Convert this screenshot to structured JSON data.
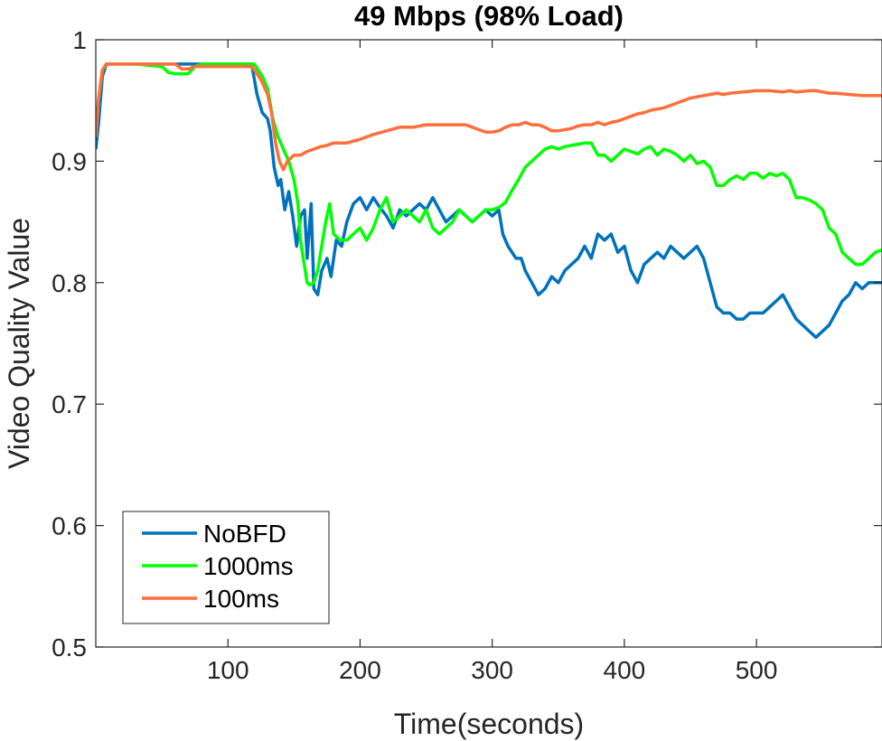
{
  "chart_data": {
    "type": "line",
    "title": "49 Mbps (98% Load)",
    "xlabel": "Time(seconds)",
    "ylabel": "Video Quality Value",
    "xlim": [
      0,
      595
    ],
    "ylim": [
      0.5,
      1
    ],
    "xticks": [
      100,
      200,
      300,
      400,
      500
    ],
    "xtick_labels": [
      "100",
      "200",
      "300",
      "400",
      "500"
    ],
    "yticks": [
      0.5,
      0.6,
      0.7,
      0.8,
      0.9,
      1
    ],
    "ytick_labels": [
      "0.5",
      "0.6",
      "0.7",
      "0.8",
      "0.9",
      "1"
    ],
    "grid": false,
    "legend_position": "bottom-left",
    "series": [
      {
        "name": "NoBFD",
        "color": "#0072BD",
        "points": [
          [
            0,
            0.91
          ],
          [
            2,
            0.93
          ],
          [
            5,
            0.97
          ],
          [
            8,
            0.98
          ],
          [
            30,
            0.98
          ],
          [
            60,
            0.98
          ],
          [
            80,
            0.98
          ],
          [
            100,
            0.98
          ],
          [
            118,
            0.98
          ],
          [
            122,
            0.955
          ],
          [
            126,
            0.94
          ],
          [
            130,
            0.935
          ],
          [
            132,
            0.925
          ],
          [
            135,
            0.895
          ],
          [
            138,
            0.88
          ],
          [
            140,
            0.885
          ],
          [
            143,
            0.86
          ],
          [
            146,
            0.875
          ],
          [
            149,
            0.855
          ],
          [
            152,
            0.83
          ],
          [
            155,
            0.855
          ],
          [
            158,
            0.86
          ],
          [
            160,
            0.82
          ],
          [
            163,
            0.865
          ],
          [
            165,
            0.795
          ],
          [
            168,
            0.79
          ],
          [
            171,
            0.81
          ],
          [
            175,
            0.82
          ],
          [
            178,
            0.805
          ],
          [
            182,
            0.835
          ],
          [
            186,
            0.83
          ],
          [
            190,
            0.85
          ],
          [
            195,
            0.865
          ],
          [
            200,
            0.87
          ],
          [
            205,
            0.86
          ],
          [
            210,
            0.87
          ],
          [
            215,
            0.862
          ],
          [
            220,
            0.855
          ],
          [
            225,
            0.845
          ],
          [
            230,
            0.86
          ],
          [
            235,
            0.855
          ],
          [
            240,
            0.86
          ],
          [
            245,
            0.865
          ],
          [
            250,
            0.86
          ],
          [
            255,
            0.87
          ],
          [
            260,
            0.86
          ],
          [
            265,
            0.85
          ],
          [
            270,
            0.855
          ],
          [
            275,
            0.86
          ],
          [
            280,
            0.855
          ],
          [
            285,
            0.85
          ],
          [
            290,
            0.855
          ],
          [
            295,
            0.86
          ],
          [
            300,
            0.855
          ],
          [
            305,
            0.86
          ],
          [
            308,
            0.84
          ],
          [
            312,
            0.83
          ],
          [
            318,
            0.82
          ],
          [
            322,
            0.82
          ],
          [
            325,
            0.81
          ],
          [
            330,
            0.8
          ],
          [
            335,
            0.79
          ],
          [
            340,
            0.795
          ],
          [
            345,
            0.805
          ],
          [
            350,
            0.8
          ],
          [
            355,
            0.81
          ],
          [
            360,
            0.815
          ],
          [
            365,
            0.82
          ],
          [
            370,
            0.83
          ],
          [
            375,
            0.82
          ],
          [
            380,
            0.84
          ],
          [
            385,
            0.835
          ],
          [
            390,
            0.84
          ],
          [
            395,
            0.825
          ],
          [
            400,
            0.83
          ],
          [
            405,
            0.81
          ],
          [
            410,
            0.8
          ],
          [
            415,
            0.815
          ],
          [
            420,
            0.82
          ],
          [
            425,
            0.825
          ],
          [
            430,
            0.82
          ],
          [
            435,
            0.83
          ],
          [
            440,
            0.825
          ],
          [
            445,
            0.82
          ],
          [
            450,
            0.825
          ],
          [
            455,
            0.83
          ],
          [
            460,
            0.82
          ],
          [
            465,
            0.8
          ],
          [
            470,
            0.78
          ],
          [
            475,
            0.775
          ],
          [
            480,
            0.775
          ],
          [
            485,
            0.77
          ],
          [
            490,
            0.77
          ],
          [
            495,
            0.775
          ],
          [
            500,
            0.775
          ],
          [
            505,
            0.775
          ],
          [
            510,
            0.78
          ],
          [
            515,
            0.785
          ],
          [
            520,
            0.79
          ],
          [
            525,
            0.78
          ],
          [
            530,
            0.77
          ],
          [
            535,
            0.765
          ],
          [
            540,
            0.76
          ],
          [
            545,
            0.755
          ],
          [
            550,
            0.76
          ],
          [
            555,
            0.765
          ],
          [
            560,
            0.775
          ],
          [
            565,
            0.785
          ],
          [
            570,
            0.79
          ],
          [
            575,
            0.8
          ],
          [
            580,
            0.795
          ],
          [
            585,
            0.8
          ],
          [
            590,
            0.8
          ],
          [
            595,
            0.8
          ]
        ]
      },
      {
        "name": "1000ms",
        "color": "#00FF00",
        "points": [
          [
            0,
            0.92
          ],
          [
            2,
            0.95
          ],
          [
            5,
            0.975
          ],
          [
            8,
            0.98
          ],
          [
            30,
            0.98
          ],
          [
            50,
            0.978
          ],
          [
            55,
            0.973
          ],
          [
            60,
            0.972
          ],
          [
            70,
            0.972
          ],
          [
            75,
            0.978
          ],
          [
            80,
            0.98
          ],
          [
            100,
            0.98
          ],
          [
            120,
            0.98
          ],
          [
            126,
            0.97
          ],
          [
            130,
            0.96
          ],
          [
            134,
            0.935
          ],
          [
            138,
            0.92
          ],
          [
            142,
            0.91
          ],
          [
            146,
            0.9
          ],
          [
            150,
            0.885
          ],
          [
            153,
            0.865
          ],
          [
            155,
            0.835
          ],
          [
            157,
            0.82
          ],
          [
            160,
            0.8
          ],
          [
            162,
            0.798
          ],
          [
            165,
            0.8
          ],
          [
            168,
            0.81
          ],
          [
            171,
            0.83
          ],
          [
            174,
            0.85
          ],
          [
            177,
            0.865
          ],
          [
            180,
            0.84
          ],
          [
            185,
            0.835
          ],
          [
            190,
            0.835
          ],
          [
            195,
            0.84
          ],
          [
            200,
            0.845
          ],
          [
            205,
            0.835
          ],
          [
            210,
            0.845
          ],
          [
            215,
            0.86
          ],
          [
            220,
            0.87
          ],
          [
            225,
            0.85
          ],
          [
            230,
            0.855
          ],
          [
            235,
            0.86
          ],
          [
            240,
            0.855
          ],
          [
            245,
            0.85
          ],
          [
            250,
            0.86
          ],
          [
            255,
            0.845
          ],
          [
            260,
            0.84
          ],
          [
            265,
            0.845
          ],
          [
            270,
            0.85
          ],
          [
            275,
            0.86
          ],
          [
            280,
            0.855
          ],
          [
            285,
            0.85
          ],
          [
            290,
            0.855
          ],
          [
            295,
            0.86
          ],
          [
            300,
            0.86
          ],
          [
            305,
            0.862
          ],
          [
            310,
            0.866
          ],
          [
            315,
            0.876
          ],
          [
            320,
            0.885
          ],
          [
            325,
            0.895
          ],
          [
            330,
            0.9
          ],
          [
            335,
            0.905
          ],
          [
            340,
            0.91
          ],
          [
            345,
            0.912
          ],
          [
            350,
            0.91
          ],
          [
            355,
            0.912
          ],
          [
            360,
            0.913
          ],
          [
            365,
            0.914
          ],
          [
            370,
            0.915
          ],
          [
            375,
            0.915
          ],
          [
            380,
            0.905
          ],
          [
            385,
            0.905
          ],
          [
            390,
            0.9
          ],
          [
            395,
            0.905
          ],
          [
            400,
            0.91
          ],
          [
            405,
            0.908
          ],
          [
            410,
            0.906
          ],
          [
            415,
            0.91
          ],
          [
            420,
            0.912
          ],
          [
            425,
            0.905
          ],
          [
            430,
            0.91
          ],
          [
            435,
            0.908
          ],
          [
            440,
            0.905
          ],
          [
            445,
            0.9
          ],
          [
            450,
            0.905
          ],
          [
            455,
            0.898
          ],
          [
            460,
            0.9
          ],
          [
            465,
            0.895
          ],
          [
            470,
            0.88
          ],
          [
            475,
            0.88
          ],
          [
            480,
            0.885
          ],
          [
            485,
            0.888
          ],
          [
            490,
            0.885
          ],
          [
            495,
            0.89
          ],
          [
            500,
            0.89
          ],
          [
            505,
            0.886
          ],
          [
            510,
            0.89
          ],
          [
            515,
            0.888
          ],
          [
            520,
            0.89
          ],
          [
            525,
            0.885
          ],
          [
            530,
            0.87
          ],
          [
            535,
            0.87
          ],
          [
            540,
            0.868
          ],
          [
            545,
            0.865
          ],
          [
            550,
            0.86
          ],
          [
            555,
            0.845
          ],
          [
            560,
            0.84
          ],
          [
            565,
            0.825
          ],
          [
            570,
            0.82
          ],
          [
            575,
            0.815
          ],
          [
            580,
            0.815
          ],
          [
            585,
            0.82
          ],
          [
            590,
            0.825
          ],
          [
            595,
            0.827
          ]
        ]
      },
      {
        "name": "100ms",
        "color": "#FF6F3C",
        "points": [
          [
            0,
            0.92
          ],
          [
            2,
            0.95
          ],
          [
            5,
            0.975
          ],
          [
            8,
            0.98
          ],
          [
            30,
            0.98
          ],
          [
            60,
            0.98
          ],
          [
            65,
            0.976
          ],
          [
            70,
            0.976
          ],
          [
            75,
            0.978
          ],
          [
            80,
            0.978
          ],
          [
            100,
            0.978
          ],
          [
            118,
            0.978
          ],
          [
            122,
            0.972
          ],
          [
            126,
            0.965
          ],
          [
            130,
            0.955
          ],
          [
            133,
            0.94
          ],
          [
            136,
            0.915
          ],
          [
            139,
            0.9
          ],
          [
            142,
            0.893
          ],
          [
            145,
            0.9
          ],
          [
            150,
            0.905
          ],
          [
            155,
            0.905
          ],
          [
            160,
            0.908
          ],
          [
            165,
            0.91
          ],
          [
            170,
            0.912
          ],
          [
            175,
            0.913
          ],
          [
            180,
            0.915
          ],
          [
            190,
            0.915
          ],
          [
            200,
            0.918
          ],
          [
            205,
            0.92
          ],
          [
            210,
            0.922
          ],
          [
            220,
            0.925
          ],
          [
            230,
            0.928
          ],
          [
            240,
            0.928
          ],
          [
            250,
            0.93
          ],
          [
            260,
            0.93
          ],
          [
            270,
            0.93
          ],
          [
            280,
            0.93
          ],
          [
            285,
            0.928
          ],
          [
            290,
            0.926
          ],
          [
            295,
            0.924
          ],
          [
            300,
            0.924
          ],
          [
            305,
            0.925
          ],
          [
            310,
            0.928
          ],
          [
            315,
            0.93
          ],
          [
            320,
            0.93
          ],
          [
            325,
            0.932
          ],
          [
            330,
            0.93
          ],
          [
            335,
            0.93
          ],
          [
            340,
            0.928
          ],
          [
            345,
            0.925
          ],
          [
            350,
            0.925
          ],
          [
            355,
            0.926
          ],
          [
            360,
            0.927
          ],
          [
            365,
            0.929
          ],
          [
            370,
            0.93
          ],
          [
            375,
            0.93
          ],
          [
            380,
            0.932
          ],
          [
            385,
            0.93
          ],
          [
            390,
            0.932
          ],
          [
            395,
            0.933
          ],
          [
            400,
            0.935
          ],
          [
            405,
            0.937
          ],
          [
            410,
            0.939
          ],
          [
            415,
            0.94
          ],
          [
            420,
            0.942
          ],
          [
            425,
            0.943
          ],
          [
            430,
            0.944
          ],
          [
            435,
            0.946
          ],
          [
            440,
            0.948
          ],
          [
            445,
            0.95
          ],
          [
            450,
            0.952
          ],
          [
            455,
            0.953
          ],
          [
            460,
            0.954
          ],
          [
            465,
            0.955
          ],
          [
            470,
            0.956
          ],
          [
            475,
            0.955
          ],
          [
            480,
            0.956
          ],
          [
            490,
            0.957
          ],
          [
            500,
            0.958
          ],
          [
            510,
            0.958
          ],
          [
            520,
            0.957
          ],
          [
            525,
            0.958
          ],
          [
            530,
            0.957
          ],
          [
            540,
            0.958
          ],
          [
            545,
            0.958
          ],
          [
            550,
            0.957
          ],
          [
            555,
            0.956
          ],
          [
            560,
            0.956
          ],
          [
            570,
            0.955
          ],
          [
            580,
            0.954
          ],
          [
            595,
            0.954
          ]
        ]
      }
    ]
  }
}
